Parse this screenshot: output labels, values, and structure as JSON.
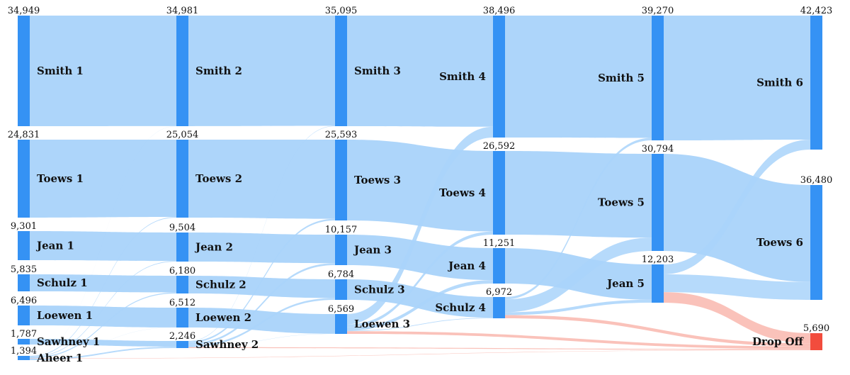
{
  "chart_data": {
    "type": "sankey",
    "title": "",
    "colors": {
      "node": "#3592F4",
      "link": "#A9D3FA",
      "drop_node": "#F24C3D",
      "drop_link": "#F9B7AE"
    },
    "nodes": [
      {
        "id": "smith1",
        "label": "Smith 1",
        "value": "34,949",
        "stage": 1
      },
      {
        "id": "toews1",
        "label": "Toews 1",
        "value": "24,831",
        "stage": 1
      },
      {
        "id": "jean1",
        "label": "Jean 1",
        "value": "9,301",
        "stage": 1
      },
      {
        "id": "schulz1",
        "label": "Schulz 1",
        "value": "5,835",
        "stage": 1
      },
      {
        "id": "loewen1",
        "label": "Loewen 1",
        "value": "6,496",
        "stage": 1
      },
      {
        "id": "sawhney1",
        "label": "Sawhney 1",
        "value": "1,787",
        "stage": 1
      },
      {
        "id": "aheer1",
        "label": "Aheer 1",
        "value": "1,394",
        "stage": 1
      },
      {
        "id": "smith2",
        "label": "Smith 2",
        "value": "34,981",
        "stage": 2
      },
      {
        "id": "toews2",
        "label": "Toews 2",
        "value": "25,054",
        "stage": 2
      },
      {
        "id": "jean2",
        "label": "Jean 2",
        "value": "9,504",
        "stage": 2
      },
      {
        "id": "schulz2",
        "label": "Schulz 2",
        "value": "6,180",
        "stage": 2
      },
      {
        "id": "loewen2",
        "label": "Loewen 2",
        "value": "6,512",
        "stage": 2
      },
      {
        "id": "sawhney2",
        "label": "Sawhney 2",
        "value": "2,246",
        "stage": 2
      },
      {
        "id": "smith3",
        "label": "Smith 3",
        "value": "35,095",
        "stage": 3
      },
      {
        "id": "toews3",
        "label": "Toews 3",
        "value": "25,593",
        "stage": 3
      },
      {
        "id": "jean3",
        "label": "Jean 3",
        "value": "10,157",
        "stage": 3
      },
      {
        "id": "schulz3",
        "label": "Schulz 3",
        "value": "6,784",
        "stage": 3
      },
      {
        "id": "loewen3",
        "label": "Loewen 3",
        "value": "6,569",
        "stage": 3
      },
      {
        "id": "smith4",
        "label": "Smith 4",
        "value": "38,496",
        "stage": 4
      },
      {
        "id": "toews4",
        "label": "Toews 4",
        "value": "26,592",
        "stage": 4
      },
      {
        "id": "jean4",
        "label": "Jean 4",
        "value": "11,251",
        "stage": 4
      },
      {
        "id": "schulz4",
        "label": "Schulz 4",
        "value": "6,972",
        "stage": 4
      },
      {
        "id": "smith5",
        "label": "Smith 5",
        "value": "39,270",
        "stage": 5
      },
      {
        "id": "toews5",
        "label": "Toews 5",
        "value": "30,794",
        "stage": 5
      },
      {
        "id": "jean5",
        "label": "Jean 5",
        "value": "12,203",
        "stage": 5
      },
      {
        "id": "smith6",
        "label": "Smith 6",
        "value": "42,423",
        "stage": 6
      },
      {
        "id": "toews6",
        "label": "Toews 6",
        "value": "36,480",
        "stage": 6
      },
      {
        "id": "dropoff",
        "label": "Drop Off",
        "value": "5,690",
        "stage": 6
      }
    ],
    "links": [
      {
        "source": "smith1",
        "target": "smith2",
        "value": 34949
      },
      {
        "source": "toews1",
        "target": "toews2",
        "value": 24831
      },
      {
        "source": "jean1",
        "target": "jean2",
        "value": 9301
      },
      {
        "source": "schulz1",
        "target": "schulz2",
        "value": 5835
      },
      {
        "source": "loewen1",
        "target": "loewen2",
        "value": 6496
      },
      {
        "source": "sawhney1",
        "target": "sawhney2",
        "value": 1787
      },
      {
        "source": "aheer1",
        "target": "smith2",
        "value": 32
      },
      {
        "source": "aheer1",
        "target": "toews2",
        "value": 223
      },
      {
        "source": "aheer1",
        "target": "jean2",
        "value": 203
      },
      {
        "source": "aheer1",
        "target": "schulz2",
        "value": 345
      },
      {
        "source": "aheer1",
        "target": "loewen2",
        "value": 16
      },
      {
        "source": "aheer1",
        "target": "sawhney2",
        "value": 459
      },
      {
        "source": "aheer1",
        "target": "dropoff",
        "value": 116
      },
      {
        "source": "smith2",
        "target": "smith3",
        "value": 34981
      },
      {
        "source": "toews2",
        "target": "toews3",
        "value": 25054
      },
      {
        "source": "jean2",
        "target": "jean3",
        "value": 9504
      },
      {
        "source": "schulz2",
        "target": "schulz3",
        "value": 6180
      },
      {
        "source": "loewen2",
        "target": "loewen3",
        "value": 6512
      },
      {
        "source": "sawhney2",
        "target": "smith3",
        "value": 114
      },
      {
        "source": "sawhney2",
        "target": "toews3",
        "value": 539
      },
      {
        "source": "sawhney2",
        "target": "jean3",
        "value": 653
      },
      {
        "source": "sawhney2",
        "target": "schulz3",
        "value": 604
      },
      {
        "source": "sawhney2",
        "target": "loewen3",
        "value": 57
      },
      {
        "source": "sawhney2",
        "target": "dropoff",
        "value": 279
      },
      {
        "source": "smith3",
        "target": "smith4",
        "value": 35095
      },
      {
        "source": "toews3",
        "target": "toews4",
        "value": 25593
      },
      {
        "source": "jean3",
        "target": "jean4",
        "value": 10157
      },
      {
        "source": "schulz3",
        "target": "schulz4",
        "value": 6784
      },
      {
        "source": "loewen3",
        "target": "smith4",
        "value": 3401
      },
      {
        "source": "loewen3",
        "target": "toews4",
        "value": 999
      },
      {
        "source": "loewen3",
        "target": "jean4",
        "value": 1094
      },
      {
        "source": "loewen3",
        "target": "schulz4",
        "value": 188
      },
      {
        "source": "loewen3",
        "target": "dropoff",
        "value": 887
      },
      {
        "source": "smith4",
        "target": "smith5",
        "value": 38496
      },
      {
        "source": "toews4",
        "target": "toews5",
        "value": 26592
      },
      {
        "source": "jean4",
        "target": "jean5",
        "value": 11251
      },
      {
        "source": "schulz4",
        "target": "smith5",
        "value": 774
      },
      {
        "source": "schulz4",
        "target": "toews5",
        "value": 4202
      },
      {
        "source": "schulz4",
        "target": "jean5",
        "value": 952
      },
      {
        "source": "schulz4",
        "target": "dropoff",
        "value": 1044
      },
      {
        "source": "smith5",
        "target": "smith6",
        "value": 39270
      },
      {
        "source": "toews5",
        "target": "toews6",
        "value": 30794
      },
      {
        "source": "jean5",
        "target": "smith6",
        "value": 3153
      },
      {
        "source": "jean5",
        "target": "toews6",
        "value": 5686
      },
      {
        "source": "jean5",
        "target": "dropoff",
        "value": 3364
      }
    ]
  }
}
